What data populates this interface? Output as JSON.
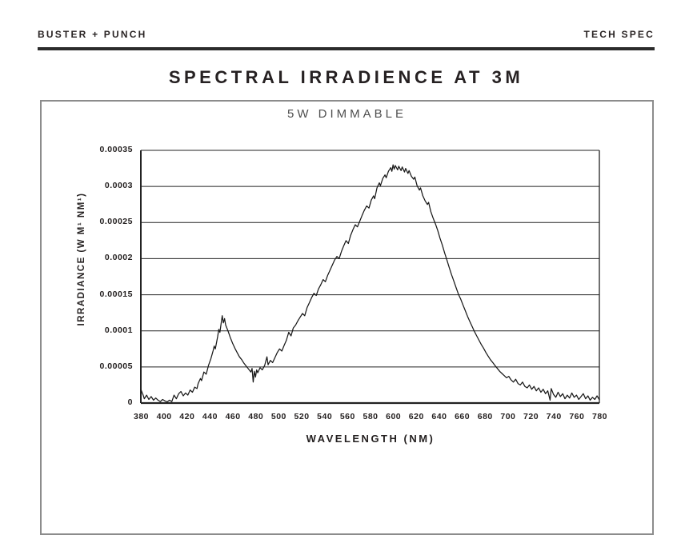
{
  "header": {
    "brand": "BUSTER + PUNCH",
    "doc_type": "TECH SPEC"
  },
  "title": "SPECTRAL IRRADIENCE AT 3M",
  "chart_data": {
    "type": "line",
    "title": "5W DIMMABLE",
    "xlabel": "WAVELENGTH (NM)",
    "ylabel": "IRRADIANCE (W M¹ NM¹)",
    "xlim": [
      380,
      780
    ],
    "ylim": [
      0,
      0.00035
    ],
    "grid": "horizontal",
    "legend": "none",
    "line_color": "#191919",
    "x_ticks": [
      "380",
      "400",
      "420",
      "440",
      "460",
      "480",
      "500",
      "520",
      "540",
      "560",
      "580",
      "600",
      "620",
      "640",
      "660",
      "680",
      "700",
      "720",
      "740",
      "760",
      "780"
    ],
    "y_ticks": [
      "0.00035",
      "0.0003",
      "0.00025",
      "0.0002",
      "0.00015",
      "0.0001",
      "0.00005",
      "0"
    ],
    "series": [
      {
        "name": "5W dimmable LED spectral irradiance at 3m",
        "points": [
          [
            380,
            1.9e-05
          ],
          [
            382,
            1.1e-05
          ],
          [
            383,
            6e-06
          ],
          [
            385,
            1.1e-05
          ],
          [
            387,
            5e-06
          ],
          [
            389,
            9e-06
          ],
          [
            391,
            4e-06
          ],
          [
            393,
            7e-06
          ],
          [
            395,
            4e-06
          ],
          [
            397,
            2e-06
          ],
          [
            399,
            5e-06
          ],
          [
            401,
            3e-06
          ],
          [
            403,
            1.5e-06
          ],
          [
            405,
            4e-06
          ],
          [
            407,
            2e-06
          ],
          [
            409,
            1.1e-05
          ],
          [
            411,
            6e-06
          ],
          [
            413,
            1.3e-05
          ],
          [
            415,
            1.6e-05
          ],
          [
            417,
            1e-05
          ],
          [
            419,
            1.4e-05
          ],
          [
            421,
            1.1e-05
          ],
          [
            423,
            1.8e-05
          ],
          [
            425,
            1.5e-05
          ],
          [
            427,
            2.2e-05
          ],
          [
            429,
            2e-05
          ],
          [
            430,
            2.7e-05
          ],
          [
            432,
            3.4e-05
          ],
          [
            433,
            3.1e-05
          ],
          [
            435,
            4.3e-05
          ],
          [
            437,
            4e-05
          ],
          [
            439,
            5.2e-05
          ],
          [
            441,
            6.1e-05
          ],
          [
            443,
            7.2e-05
          ],
          [
            444,
            7.9e-05
          ],
          [
            445,
            7.5e-05
          ],
          [
            447,
            9.2e-05
          ],
          [
            448,
            0.000102
          ],
          [
            449,
            9.8e-05
          ],
          [
            450,
            0.00011
          ],
          [
            451,
            0.000121
          ],
          [
            452,
            0.000111
          ],
          [
            453,
            0.000117
          ],
          [
            454,
            0.000108
          ],
          [
            456,
            0.0001
          ],
          [
            458,
            9.1e-05
          ],
          [
            460,
            8.3e-05
          ],
          [
            462,
            7.6e-05
          ],
          [
            464,
            7e-05
          ],
          [
            466,
            6.4e-05
          ],
          [
            468,
            6e-05
          ],
          [
            470,
            5.5e-05
          ],
          [
            472,
            5.1e-05
          ],
          [
            474,
            4.7e-05
          ],
          [
            476,
            4.3e-05
          ],
          [
            477,
            4.8e-05
          ],
          [
            478,
            2.9e-05
          ],
          [
            479,
            4.4e-05
          ],
          [
            480,
            3.6e-05
          ],
          [
            481,
            4.6e-05
          ],
          [
            482,
            4.2e-05
          ],
          [
            484,
            4.9e-05
          ],
          [
            486,
            4.6e-05
          ],
          [
            488,
            5.2e-05
          ],
          [
            490,
            6.4e-05
          ],
          [
            491,
            5.3e-05
          ],
          [
            493,
            5.9e-05
          ],
          [
            495,
            5.6e-05
          ],
          [
            497,
            6.3e-05
          ],
          [
            499,
            7e-05
          ],
          [
            501,
            7.5e-05
          ],
          [
            503,
            7.2e-05
          ],
          [
            505,
            8e-05
          ],
          [
            507,
            8.7e-05
          ],
          [
            509,
            9.8e-05
          ],
          [
            511,
            9.3e-05
          ],
          [
            513,
            0.000104
          ],
          [
            515,
            0.000108
          ],
          [
            517,
            0.000114
          ],
          [
            519,
            0.000119
          ],
          [
            521,
            0.000124
          ],
          [
            523,
            0.000121
          ],
          [
            525,
            0.000132
          ],
          [
            527,
            0.000139
          ],
          [
            529,
            0.000146
          ],
          [
            531,
            0.000152
          ],
          [
            533,
            0.000149
          ],
          [
            535,
            0.000158
          ],
          [
            537,
            0.000164
          ],
          [
            539,
            0.000171
          ],
          [
            541,
            0.000168
          ],
          [
            543,
            0.000177
          ],
          [
            545,
            0.000184
          ],
          [
            547,
            0.000191
          ],
          [
            549,
            0.000198
          ],
          [
            551,
            0.000203
          ],
          [
            553,
            0.0002
          ],
          [
            555,
            0.00021
          ],
          [
            557,
            0.000218
          ],
          [
            559,
            0.000225
          ],
          [
            561,
            0.000221
          ],
          [
            563,
            0.000232
          ],
          [
            565,
            0.00024
          ],
          [
            567,
            0.000247
          ],
          [
            569,
            0.000244
          ],
          [
            571,
            0.000252
          ],
          [
            573,
            0.00026
          ],
          [
            575,
            0.000267
          ],
          [
            577,
            0.000273
          ],
          [
            579,
            0.00027
          ],
          [
            581,
            0.000281
          ],
          [
            583,
            0.000287
          ],
          [
            584,
            0.000283
          ],
          [
            586,
            0.000298
          ],
          [
            588,
            0.000305
          ],
          [
            589,
            0.000301
          ],
          [
            591,
            0.000311
          ],
          [
            593,
            0.000316
          ],
          [
            594,
            0.000312
          ],
          [
            596,
            0.000321
          ],
          [
            598,
            0.000326
          ],
          [
            599,
            0.000321
          ],
          [
            600,
            0.00033
          ],
          [
            601,
            0.000324
          ],
          [
            602,
            0.000329
          ],
          [
            604,
            0.000323
          ],
          [
            605,
            0.000328
          ],
          [
            607,
            0.000322
          ],
          [
            608,
            0.000327
          ],
          [
            610,
            0.00032
          ],
          [
            611,
            0.000325
          ],
          [
            613,
            0.000318
          ],
          [
            614,
            0.000322
          ],
          [
            616,
            0.000314
          ],
          [
            618,
            0.00031
          ],
          [
            619,
            0.000313
          ],
          [
            621,
            0.000301
          ],
          [
            623,
            0.000295
          ],
          [
            624,
            0.000298
          ],
          [
            626,
            0.000287
          ],
          [
            628,
            0.00028
          ],
          [
            630,
            0.000275
          ],
          [
            631,
            0.000278
          ],
          [
            633,
            0.000265
          ],
          [
            635,
            0.000256
          ],
          [
            637,
            0.000248
          ],
          [
            639,
            0.000239
          ],
          [
            641,
            0.000228
          ],
          [
            643,
            0.000219
          ],
          [
            645,
            0.000208
          ],
          [
            647,
            0.000198
          ],
          [
            649,
            0.000188
          ],
          [
            651,
            0.000178
          ],
          [
            653,
            0.000169
          ],
          [
            655,
            0.00016
          ],
          [
            657,
            0.000151
          ],
          [
            659,
            0.000144
          ],
          [
            661,
            0.000136
          ],
          [
            663,
            0.000128
          ],
          [
            665,
            0.00012
          ],
          [
            667,
            0.000113
          ],
          [
            669,
            0.000106
          ],
          [
            671,
            9.9e-05
          ],
          [
            673,
            9.3e-05
          ],
          [
            675,
            8.7e-05
          ],
          [
            677,
            8.1e-05
          ],
          [
            679,
            7.6e-05
          ],
          [
            681,
            7e-05
          ],
          [
            683,
            6.5e-05
          ],
          [
            685,
            6e-05
          ],
          [
            687,
            5.6e-05
          ],
          [
            689,
            5.2e-05
          ],
          [
            691,
            4.8e-05
          ],
          [
            693,
            4.4e-05
          ],
          [
            695,
            4.1e-05
          ],
          [
            697,
            3.8e-05
          ],
          [
            699,
            3.5e-05
          ],
          [
            701,
            3.7e-05
          ],
          [
            703,
            3.2e-05
          ],
          [
            705,
            2.9e-05
          ],
          [
            707,
            3.3e-05
          ],
          [
            709,
            2.7e-05
          ],
          [
            711,
            2.5e-05
          ],
          [
            713,
            2.9e-05
          ],
          [
            715,
            2.3e-05
          ],
          [
            717,
            2.1e-05
          ],
          [
            719,
            2.5e-05
          ],
          [
            721,
            1.9e-05
          ],
          [
            723,
            2.3e-05
          ],
          [
            725,
            1.7e-05
          ],
          [
            727,
            2.1e-05
          ],
          [
            729,
            1.5e-05
          ],
          [
            731,
            1.9e-05
          ],
          [
            733,
            1.3e-05
          ],
          [
            735,
            1.7e-05
          ],
          [
            737,
            4e-06
          ],
          [
            738,
            2e-05
          ],
          [
            740,
            1.2e-05
          ],
          [
            742,
            8e-06
          ],
          [
            744,
            1.5e-05
          ],
          [
            746,
            9e-06
          ],
          [
            748,
            1.3e-05
          ],
          [
            750,
            6e-06
          ],
          [
            752,
            1.1e-05
          ],
          [
            754,
            7e-06
          ],
          [
            756,
            1.4e-05
          ],
          [
            758,
            8e-06
          ],
          [
            760,
            1.1e-05
          ],
          [
            762,
            5e-06
          ],
          [
            764,
            9e-06
          ],
          [
            766,
            1.3e-05
          ],
          [
            768,
            6e-06
          ],
          [
            770,
            1e-05
          ],
          [
            772,
            4e-06
          ],
          [
            774,
            8e-06
          ],
          [
            776,
            5e-06
          ],
          [
            778,
            1e-05
          ],
          [
            780,
            4.5e-06
          ]
        ]
      }
    ]
  }
}
